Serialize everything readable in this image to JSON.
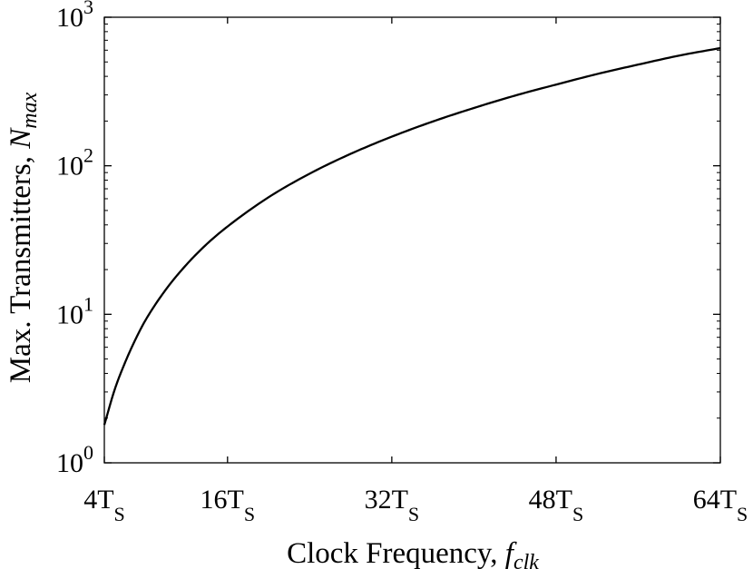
{
  "chart_data": {
    "type": "line",
    "xlabel": {
      "text": "Clock Frequency, ",
      "symbol": "f",
      "symbol_sub": "clk"
    },
    "ylabel": {
      "text": "Max. Transmitters, ",
      "symbol": "N",
      "symbol_sub": "max"
    },
    "x_scale": "linear",
    "y_scale": "log",
    "xlim": [
      4,
      64
    ],
    "ylim": [
      1,
      1000
    ],
    "grid": false,
    "x_ticks": [
      {
        "value": 4,
        "label": "4T",
        "sub": "S"
      },
      {
        "value": 16,
        "label": "16T",
        "sub": "S"
      },
      {
        "value": 32,
        "label": "32T",
        "sub": "S"
      },
      {
        "value": 48,
        "label": "48T",
        "sub": "S"
      },
      {
        "value": 64,
        "label": "64T",
        "sub": "S"
      }
    ],
    "y_ticks": [
      {
        "value": 1,
        "base": "10",
        "exp": "0"
      },
      {
        "value": 10,
        "base": "10",
        "exp": "1"
      },
      {
        "value": 100,
        "base": "10",
        "exp": "2"
      },
      {
        "value": 1000,
        "base": "10",
        "exp": "3"
      }
    ],
    "series": [
      {
        "color": "#000000",
        "x": [
          4,
          5,
          6,
          7,
          8,
          10,
          12,
          14,
          16,
          20,
          24,
          28,
          32,
          36,
          40,
          44,
          48,
          52,
          56,
          60,
          64
        ],
        "y": [
          1.8,
          3.1,
          4.7,
          6.7,
          9.1,
          14.7,
          21.6,
          29.8,
          39,
          61.4,
          88.5,
          120.4,
          157,
          198.7,
          245,
          296.8,
          352,
          414.7,
          480,
          552,
          620
        ]
      }
    ]
  }
}
